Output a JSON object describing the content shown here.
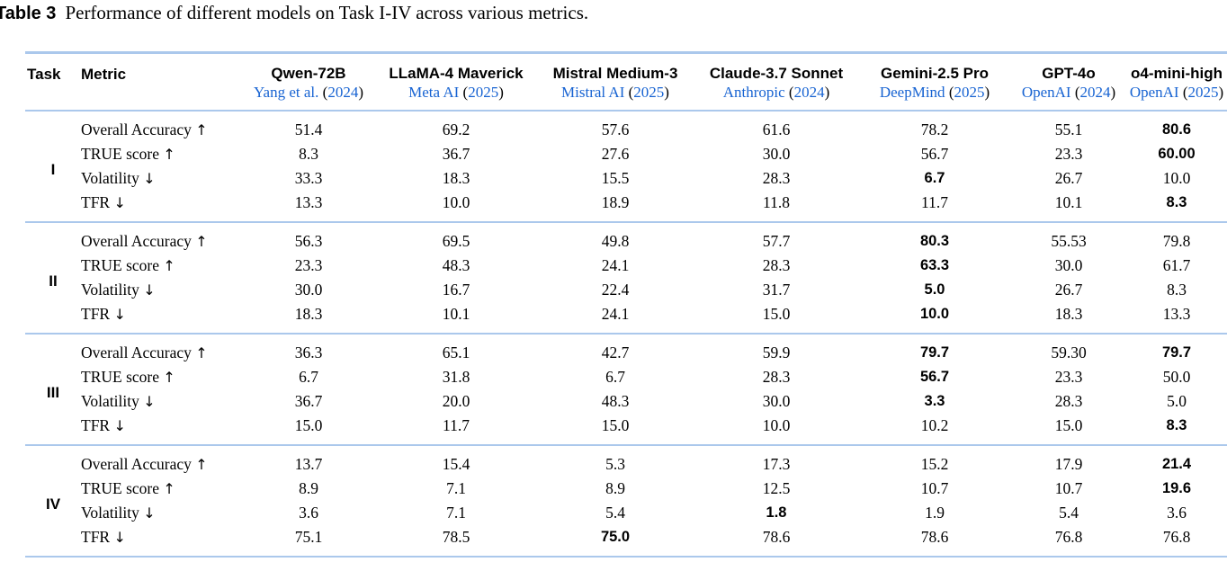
{
  "colors": {
    "rule_blue": "#abc8ec",
    "cite_blue": "#1763d2"
  },
  "caption": {
    "label": "Table 3",
    "text": "Performance of different models on Task I-IV across various metrics."
  },
  "table": {
    "header": {
      "task": "Task",
      "metric": "Metric",
      "models": [
        {
          "name": "Qwen-72B",
          "cite_name": "Yang et al.",
          "cite_year": "2024"
        },
        {
          "name": "LLaMA-4 Maverick",
          "cite_name": "Meta AI",
          "cite_year": "2025"
        },
        {
          "name": "Mistral Medium-3",
          "cite_name": "Mistral AI",
          "cite_year": "2025"
        },
        {
          "name": "Claude-3.7 Sonnet",
          "cite_name": "Anthropic",
          "cite_year": "2024"
        },
        {
          "name": "Gemini-2.5 Pro",
          "cite_name": "DeepMind",
          "cite_year": "2025"
        },
        {
          "name": "GPT-4o",
          "cite_name": "OpenAI",
          "cite_year": "2024"
        },
        {
          "name": "o4-mini-high",
          "cite_name": "OpenAI",
          "cite_year": "2025"
        }
      ]
    },
    "tasks": [
      {
        "label": "I",
        "rows": [
          {
            "metric": "Overall Accuracy",
            "arrow": "↑",
            "values": [
              "51.4",
              "69.2",
              "57.6",
              "61.6",
              "78.2",
              "55.1",
              "80.6"
            ],
            "bold": [
              6
            ]
          },
          {
            "metric": "TRUE score",
            "arrow": "↑",
            "values": [
              "8.3",
              "36.7",
              "27.6",
              "30.0",
              "56.7",
              "23.3",
              "60.00"
            ],
            "bold": [
              6
            ]
          },
          {
            "metric": "Volatility",
            "arrow": "↓",
            "values": [
              "33.3",
              "18.3",
              "15.5",
              "28.3",
              "6.7",
              "26.7",
              "10.0"
            ],
            "bold": [
              4
            ]
          },
          {
            "metric": "TFR",
            "arrow": "↓",
            "values": [
              "13.3",
              "10.0",
              "18.9",
              "11.8",
              "11.7",
              "10.1",
              "8.3"
            ],
            "bold": [
              6
            ]
          }
        ]
      },
      {
        "label": "II",
        "rows": [
          {
            "metric": "Overall Accuracy",
            "arrow": "↑",
            "values": [
              "56.3",
              "69.5",
              "49.8",
              "57.7",
              "80.3",
              "55.53",
              "79.8"
            ],
            "bold": [
              4
            ]
          },
          {
            "metric": "TRUE score",
            "arrow": "↑",
            "values": [
              "23.3",
              "48.3",
              "24.1",
              "28.3",
              "63.3",
              "30.0",
              "61.7"
            ],
            "bold": [
              4
            ]
          },
          {
            "metric": "Volatility",
            "arrow": "↓",
            "values": [
              "30.0",
              "16.7",
              "22.4",
              "31.7",
              "5.0",
              "26.7",
              "8.3"
            ],
            "bold": [
              4
            ]
          },
          {
            "metric": "TFR",
            "arrow": "↓",
            "values": [
              "18.3",
              "10.1",
              "24.1",
              "15.0",
              "10.0",
              "18.3",
              "13.3"
            ],
            "bold": [
              4
            ]
          }
        ]
      },
      {
        "label": "III",
        "rows": [
          {
            "metric": "Overall Accuracy",
            "arrow": "↑",
            "values": [
              "36.3",
              "65.1",
              "42.7",
              "59.9",
              "79.7",
              "59.30",
              "79.7"
            ],
            "bold": [
              4,
              6
            ]
          },
          {
            "metric": "TRUE score",
            "arrow": "↑",
            "values": [
              "6.7",
              "31.8",
              "6.7",
              "28.3",
              "56.7",
              "23.3",
              "50.0"
            ],
            "bold": [
              4
            ]
          },
          {
            "metric": "Volatility",
            "arrow": "↓",
            "values": [
              "36.7",
              "20.0",
              "48.3",
              "30.0",
              "3.3",
              "28.3",
              "5.0"
            ],
            "bold": [
              4
            ]
          },
          {
            "metric": "TFR",
            "arrow": "↓",
            "values": [
              "15.0",
              "11.7",
              "15.0",
              "10.0",
              "10.2",
              "15.0",
              "8.3"
            ],
            "bold": [
              6
            ]
          }
        ]
      },
      {
        "label": "IV",
        "rows": [
          {
            "metric": "Overall Accuracy",
            "arrow": "↑",
            "values": [
              "13.7",
              "15.4",
              "5.3",
              "17.3",
              "15.2",
              "17.9",
              "21.4"
            ],
            "bold": [
              6
            ]
          },
          {
            "metric": "TRUE score",
            "arrow": "↑",
            "values": [
              "8.9",
              "7.1",
              "8.9",
              "12.5",
              "10.7",
              "10.7",
              "19.6"
            ],
            "bold": [
              6
            ]
          },
          {
            "metric": "Volatility",
            "arrow": "↓",
            "values": [
              "3.6",
              "7.1",
              "5.4",
              "1.8",
              "1.9",
              "5.4",
              "3.6"
            ],
            "bold": [
              3
            ]
          },
          {
            "metric": "TFR",
            "arrow": "↓",
            "values": [
              "75.1",
              "78.5",
              "75.0",
              "78.6",
              "78.6",
              "76.8",
              "76.8"
            ],
            "bold": [
              2
            ]
          }
        ]
      }
    ]
  }
}
